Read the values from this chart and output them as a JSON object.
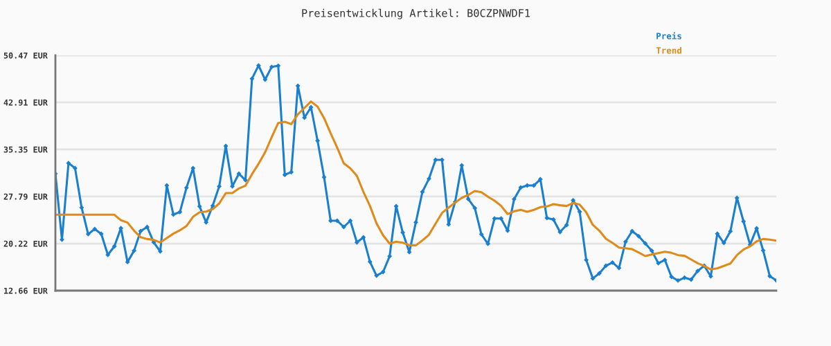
{
  "chart_data": {
    "type": "line",
    "title": "Preisentwicklung Artikel: B0CZPNWDF1",
    "categories": [
      null,
      null,
      null,
      null,
      null,
      null,
      null,
      null,
      null,
      null,
      null,
      null,
      null,
      null,
      null,
      null,
      null,
      null,
      null,
      null,
      null,
      null,
      null,
      null,
      null,
      null,
      null,
      null,
      null,
      null,
      null,
      null,
      null,
      null,
      null,
      null,
      null,
      null,
      null,
      null,
      null,
      null,
      null,
      null,
      null,
      null,
      null,
      null,
      null,
      null,
      null,
      null,
      null,
      null,
      null,
      null,
      null,
      null,
      null,
      null,
      null,
      null,
      null,
      null,
      null,
      null,
      null,
      null,
      null,
      null,
      null,
      null,
      null,
      null,
      null,
      null,
      null,
      null,
      null,
      null,
      null,
      null,
      null,
      null,
      null,
      null,
      null,
      null,
      null,
      null,
      null,
      null,
      null,
      null,
      null,
      null,
      null,
      null,
      null,
      null,
      null,
      null,
      null,
      null,
      null,
      null,
      null,
      null,
      null,
      null,
      null
    ],
    "series": [
      {
        "name": "Preis",
        "color": "#1a7fcf",
        "marker": "diamond",
        "values": [
          31.45,
          20.85,
          33.16,
          32.34,
          26.01,
          21.74,
          22.56,
          21.78,
          18.41,
          19.78,
          22.71,
          17.26,
          19.07,
          22.22,
          22.89,
          20.44,
          18.96,
          29.56,
          24.89,
          25.3,
          29.19,
          32.34,
          26.19,
          23.63,
          26.3,
          29.42,
          35.9,
          29.42,
          31.45,
          30.42,
          46.73,
          48.84,
          46.58,
          48.62,
          48.8,
          31.27,
          31.71,
          45.58,
          40.46,
          42.13,
          36.76,
          30.9,
          23.89,
          23.89,
          22.89,
          23.89,
          20.41,
          21.22,
          17.29,
          15.07,
          15.66,
          18.18,
          26.23,
          22.0,
          18.85,
          23.63,
          28.53,
          30.64,
          33.68,
          33.68,
          23.3,
          26.93,
          32.79,
          27.38,
          25.93,
          21.71,
          20.19,
          24.26,
          24.26,
          22.3,
          27.38,
          29.23,
          29.56,
          29.56,
          30.56,
          24.34,
          24.08,
          22.08,
          23.19,
          27.19,
          25.34,
          17.59,
          14.62,
          15.44,
          16.66,
          17.18,
          16.29,
          20.52,
          22.22,
          21.41,
          20.26,
          19.07,
          17.07,
          17.59,
          14.88,
          14.29,
          14.74,
          14.44,
          15.81,
          16.66,
          14.96,
          21.82,
          20.33,
          22.19,
          27.56,
          23.78,
          20.04,
          22.67,
          19.11,
          15.0,
          14.29
        ]
      },
      {
        "name": "Trend",
        "color": "#e08a1a",
        "values": [
          24.86,
          24.86,
          24.86,
          24.86,
          24.86,
          24.86,
          24.86,
          24.86,
          24.86,
          24.86,
          23.97,
          23.6,
          22.3,
          21.26,
          20.96,
          20.82,
          20.41,
          21.11,
          21.82,
          22.37,
          23.04,
          24.52,
          25.26,
          25.37,
          25.75,
          26.67,
          28.34,
          28.34,
          29.08,
          29.53,
          31.38,
          33.05,
          34.9,
          37.31,
          39.61,
          39.79,
          39.42,
          41.01,
          42.02,
          43.06,
          42.24,
          40.39,
          37.94,
          35.64,
          33.12,
          32.31,
          31.12,
          28.53,
          26.27,
          23.48,
          21.56,
          20.22,
          20.52,
          20.37,
          19.96,
          19.93,
          20.74,
          21.63,
          23.41,
          25.15,
          26.0,
          26.82,
          27.56,
          28.04,
          28.67,
          28.49,
          27.75,
          27.12,
          26.3,
          24.97,
          25.41,
          25.64,
          25.34,
          25.64,
          26.08,
          26.19,
          26.56,
          26.38,
          26.27,
          26.75,
          26.49,
          25.26,
          23.23,
          22.3,
          21.0,
          20.33,
          19.59,
          19.48,
          19.33,
          18.78,
          18.22,
          18.48,
          18.7,
          18.92,
          18.74,
          18.37,
          18.26,
          17.66,
          17.07,
          16.63,
          16.07,
          16.25,
          16.63,
          17.03,
          18.37,
          19.26,
          19.78,
          20.59,
          20.96,
          20.85,
          20.7
        ]
      }
    ],
    "ylim": [
      12.66,
      50.47
    ],
    "yticks": [
      {
        "value": 12.66,
        "label": "12.66 EUR"
      },
      {
        "value": 20.22,
        "label": "20.22 EUR"
      },
      {
        "value": 27.79,
        "label": "27.79 EUR"
      },
      {
        "value": 35.35,
        "label": "35.35 EUR"
      },
      {
        "value": 42.91,
        "label": "42.91 EUR"
      },
      {
        "value": 50.47,
        "label": "50.47 EUR"
      }
    ],
    "grid": "y",
    "legend": "top right",
    "line_style": "solid"
  }
}
